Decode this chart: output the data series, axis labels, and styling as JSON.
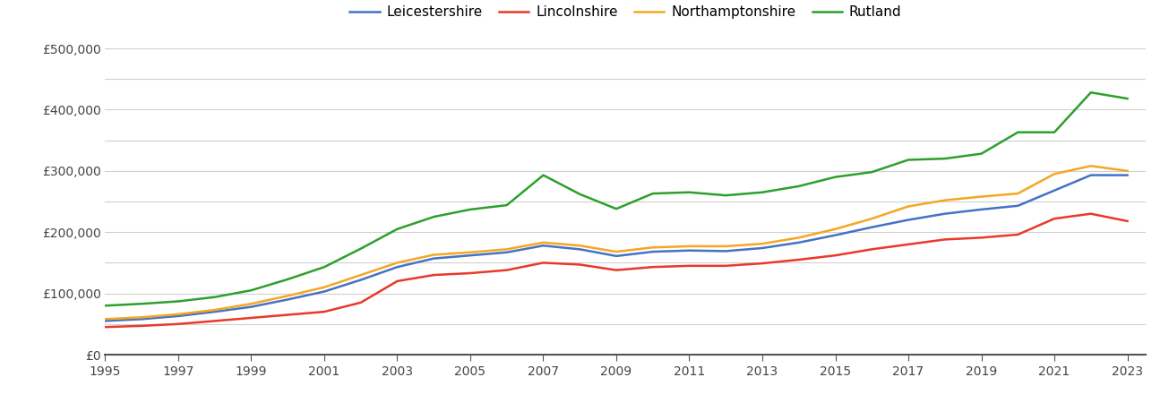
{
  "years": [
    1995,
    1996,
    1997,
    1998,
    1999,
    2000,
    2001,
    2002,
    2003,
    2004,
    2005,
    2006,
    2007,
    2008,
    2009,
    2010,
    2011,
    2012,
    2013,
    2014,
    2015,
    2016,
    2017,
    2018,
    2019,
    2020,
    2021,
    2022,
    2023
  ],
  "leicestershire": [
    55000,
    58000,
    63000,
    70000,
    78000,
    90000,
    103000,
    122000,
    143000,
    157000,
    162000,
    167000,
    178000,
    172000,
    161000,
    168000,
    170000,
    169000,
    174000,
    183000,
    195000,
    208000,
    220000,
    230000,
    237000,
    243000,
    268000,
    293000,
    293000
  ],
  "lincolnshire": [
    45000,
    47000,
    50000,
    55000,
    60000,
    65000,
    70000,
    85000,
    120000,
    130000,
    133000,
    138000,
    150000,
    147000,
    138000,
    143000,
    145000,
    145000,
    149000,
    155000,
    162000,
    172000,
    180000,
    188000,
    191000,
    196000,
    222000,
    230000,
    218000
  ],
  "northamptonshire": [
    58000,
    61000,
    66000,
    73000,
    83000,
    96000,
    110000,
    130000,
    150000,
    163000,
    167000,
    172000,
    183000,
    178000,
    168000,
    175000,
    177000,
    177000,
    181000,
    191000,
    205000,
    222000,
    242000,
    252000,
    258000,
    263000,
    295000,
    308000,
    300000
  ],
  "rutland": [
    80000,
    83000,
    87000,
    94000,
    105000,
    123000,
    143000,
    173000,
    205000,
    225000,
    237000,
    244000,
    293000,
    262000,
    238000,
    263000,
    265000,
    260000,
    265000,
    275000,
    290000,
    298000,
    318000,
    320000,
    328000,
    363000,
    363000,
    428000,
    418000
  ],
  "colors": {
    "leicestershire": "#4472C4",
    "lincolnshire": "#E8392A",
    "northamptonshire": "#F5A623",
    "rutland": "#2CA02C"
  },
  "ylim": [
    0,
    500000
  ],
  "yticks": [
    0,
    100000,
    200000,
    300000,
    400000,
    500000
  ],
  "minor_yticks": [
    50000,
    150000,
    250000,
    350000,
    450000
  ],
  "ytick_labels": [
    "£0",
    "£100,000",
    "£200,000",
    "£300,000",
    "£400,000",
    "£500,000"
  ],
  "xticks": [
    1995,
    1997,
    1999,
    2001,
    2003,
    2005,
    2007,
    2009,
    2011,
    2013,
    2015,
    2017,
    2019,
    2021,
    2023
  ],
  "legend_labels": [
    "Leicestershire",
    "Lincolnshire",
    "Northamptonshire",
    "Rutland"
  ],
  "background_color": "#ffffff",
  "grid_color": "#d0d0d0",
  "line_width": 1.8
}
